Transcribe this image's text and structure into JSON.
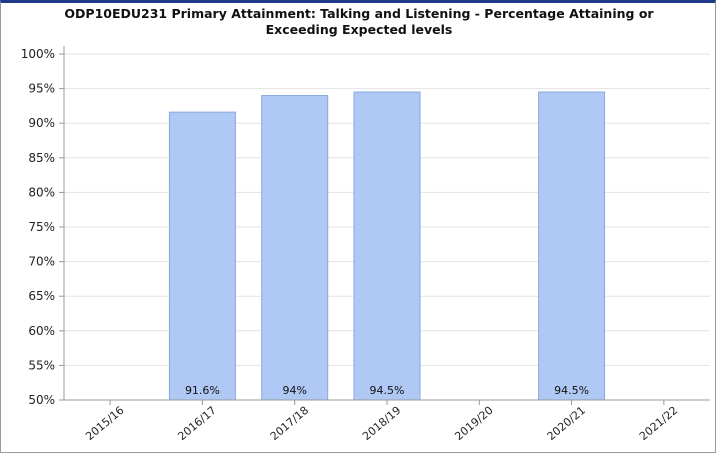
{
  "chart_data": {
    "type": "bar",
    "title": "ODP10EDU231 Primary Attainment: Talking and Listening - Percentage Attaining or\nExceeding Expected levels",
    "categories": [
      "2015/16",
      "2016/17",
      "2017/18",
      "2018/19",
      "2019/20",
      "2020/21",
      "2021/22"
    ],
    "values": [
      null,
      91.6,
      94,
      94.5,
      null,
      94.5,
      null
    ],
    "data_labels": [
      "",
      "91.6%",
      "94%",
      "94.5%",
      "",
      "94.5%",
      ""
    ],
    "y_ticks": [
      "50%",
      "55%",
      "60%",
      "65%",
      "70%",
      "75%",
      "80%",
      "85%",
      "90%",
      "95%",
      "100%"
    ],
    "ylim": [
      50,
      100
    ],
    "grid": true,
    "xlabel": "",
    "ylabel": "",
    "colors": {
      "bar_fill": "#b0c8f4",
      "bar_stroke": "#8aa8e0",
      "grid": "#e3e3e3",
      "axis": "#999999"
    }
  }
}
